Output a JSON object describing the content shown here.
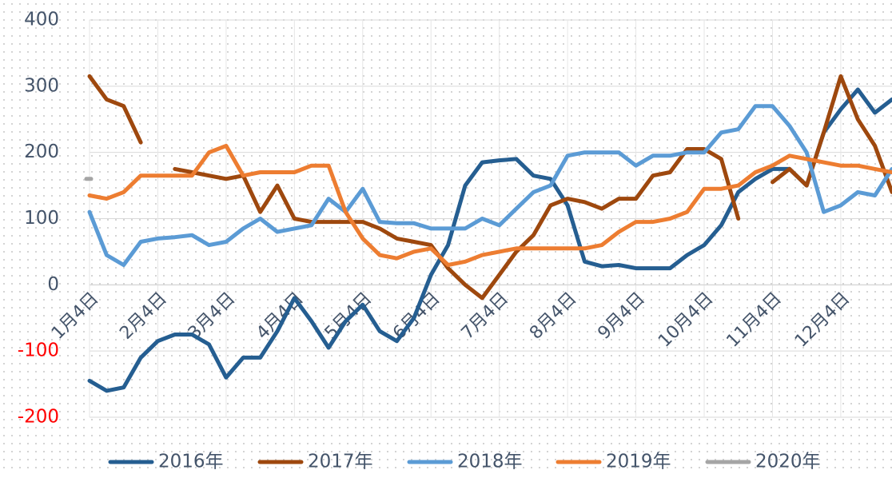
{
  "chart_data": {
    "type": "line",
    "x": [
      0,
      0.25,
      0.5,
      0.75,
      1,
      1.25,
      1.5,
      1.75,
      2,
      2.25,
      2.5,
      2.75,
      3,
      3.25,
      3.5,
      3.75,
      4,
      4.25,
      4.5,
      4.75,
      5,
      5.25,
      5.5,
      5.75,
      6,
      6.25,
      6.5,
      6.75,
      7,
      7.25,
      7.5,
      7.75,
      8,
      8.25,
      8.5,
      8.75,
      9,
      9.25,
      9.5,
      9.75,
      10,
      10.25,
      10.5,
      10.75,
      11,
      11.25,
      11.5,
      11.75
    ],
    "xlim": [
      0,
      11.75
    ],
    "xticks": [
      {
        "value": 0,
        "label": "1月4日"
      },
      {
        "value": 1,
        "label": "2月4日"
      },
      {
        "value": 2,
        "label": "3月4日"
      },
      {
        "value": 3,
        "label": "4月4日"
      },
      {
        "value": 4,
        "label": "5月4日"
      },
      {
        "value": 5,
        "label": "6月4日"
      },
      {
        "value": 6,
        "label": "7月4日"
      },
      {
        "value": 7,
        "label": "8月4日"
      },
      {
        "value": 8,
        "label": "9月4日"
      },
      {
        "value": 9,
        "label": "10月4日"
      },
      {
        "value": 10,
        "label": "11月4日"
      },
      {
        "value": 11,
        "label": "12月4日"
      }
    ],
    "ylim": [
      -200,
      400
    ],
    "yticks": [
      -200,
      -100,
      0,
      100,
      200,
      300,
      400
    ],
    "negative_tick_color": "#ff0000",
    "grid": true,
    "legend": "bottom",
    "series": [
      {
        "name": "2016年",
        "color": "#255e91",
        "values": [
          -145,
          -160,
          -155,
          -110,
          -85,
          -75,
          -75,
          -90,
          -140,
          -110,
          -110,
          -70,
          -20,
          -55,
          -95,
          -55,
          -30,
          -70,
          -85,
          -50,
          15,
          60,
          150,
          185,
          188,
          190,
          165,
          160,
          120,
          35,
          28,
          30,
          25,
          25,
          25,
          45,
          60,
          90,
          140,
          160,
          175,
          175,
          150,
          230,
          265,
          295,
          260,
          280
        ]
      },
      {
        "name": "2017年",
        "color": "#9e480e",
        "values": [
          315,
          280,
          270,
          215,
          null,
          175,
          170,
          165,
          160,
          165,
          110,
          150,
          100,
          95,
          95,
          95,
          95,
          85,
          70,
          65,
          60,
          25,
          0,
          -20,
          15,
          50,
          75,
          120,
          130,
          125,
          115,
          130,
          130,
          165,
          170,
          205,
          205,
          190,
          100,
          null,
          155,
          175,
          150,
          230,
          315,
          250,
          210,
          140
        ]
      },
      {
        "name": "2018年",
        "color": "#5b9bd5",
        "values": [
          110,
          45,
          30,
          65,
          70,
          72,
          75,
          60,
          65,
          85,
          100,
          80,
          85,
          90,
          130,
          110,
          145,
          95,
          93,
          93,
          85,
          85,
          85,
          100,
          90,
          115,
          140,
          150,
          195,
          200,
          200,
          200,
          180,
          195,
          195,
          200,
          200,
          230,
          235,
          270,
          270,
          240,
          200,
          110,
          120,
          140,
          135,
          175
        ]
      },
      {
        "name": "2019年",
        "color": "#ed7d31",
        "values": [
          135,
          130,
          140,
          165,
          165,
          165,
          165,
          200,
          210,
          165,
          170,
          170,
          170,
          180,
          180,
          110,
          70,
          45,
          40,
          50,
          55,
          30,
          35,
          45,
          50,
          55,
          55,
          55,
          55,
          55,
          60,
          80,
          95,
          95,
          100,
          110,
          145,
          145,
          150,
          170,
          180,
          195,
          190,
          185,
          180,
          180,
          175,
          170
        ]
      },
      {
        "name": "2020年",
        "color": "#a5a5a5",
        "values": [
          160,
          null,
          null,
          null,
          null,
          null,
          null,
          null,
          null,
          null,
          null,
          null,
          null,
          null,
          null,
          null,
          null,
          null,
          null,
          null,
          null,
          null,
          null,
          null,
          null,
          null,
          null,
          null,
          null,
          null,
          null,
          null,
          null,
          null,
          null,
          null,
          null,
          null,
          null,
          null,
          null,
          null,
          null,
          null,
          null,
          null,
          null,
          null
        ]
      }
    ]
  }
}
